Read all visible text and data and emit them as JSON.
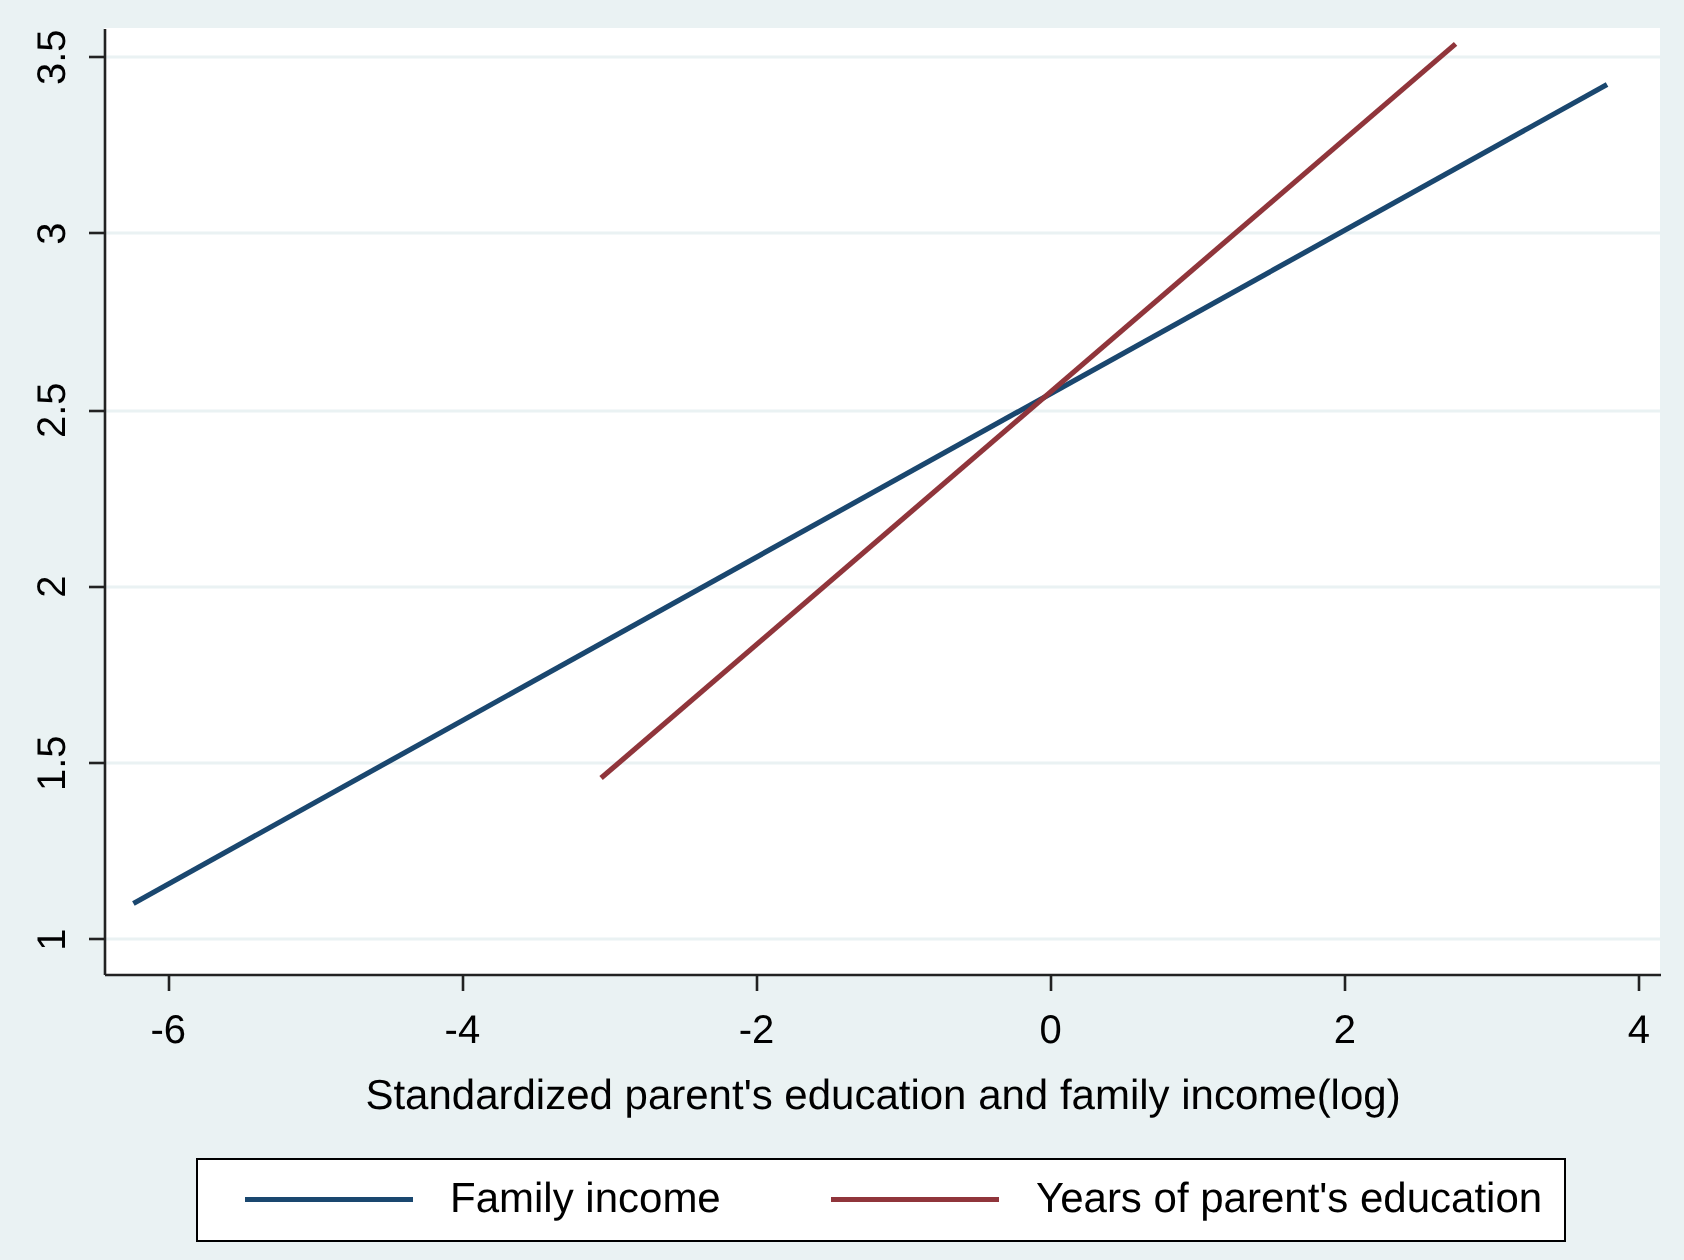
{
  "chart_data": {
    "type": "line",
    "xlabel": "Standardized parent's education and family income(log)",
    "series": [
      {
        "name": "Family income",
        "color": "#1a476f",
        "x": [
          -6.23,
          3.79
        ],
        "values": [
          1.1,
          3.42
        ]
      },
      {
        "name": "Years of parent's education",
        "color": "#90353b",
        "x": [
          -3.05,
          2.76
        ],
        "values": [
          1.455,
          3.535
        ]
      }
    ],
    "xlim": [
      -6.43,
      4.15
    ],
    "xticks": [
      -6,
      -4,
      -2,
      0,
      2,
      4
    ],
    "ylim": [
      0.9,
      3.58
    ],
    "yticks": [
      1,
      1.5,
      2,
      2.5,
      3,
      3.5
    ],
    "grid": "y",
    "legend": "bottom"
  }
}
